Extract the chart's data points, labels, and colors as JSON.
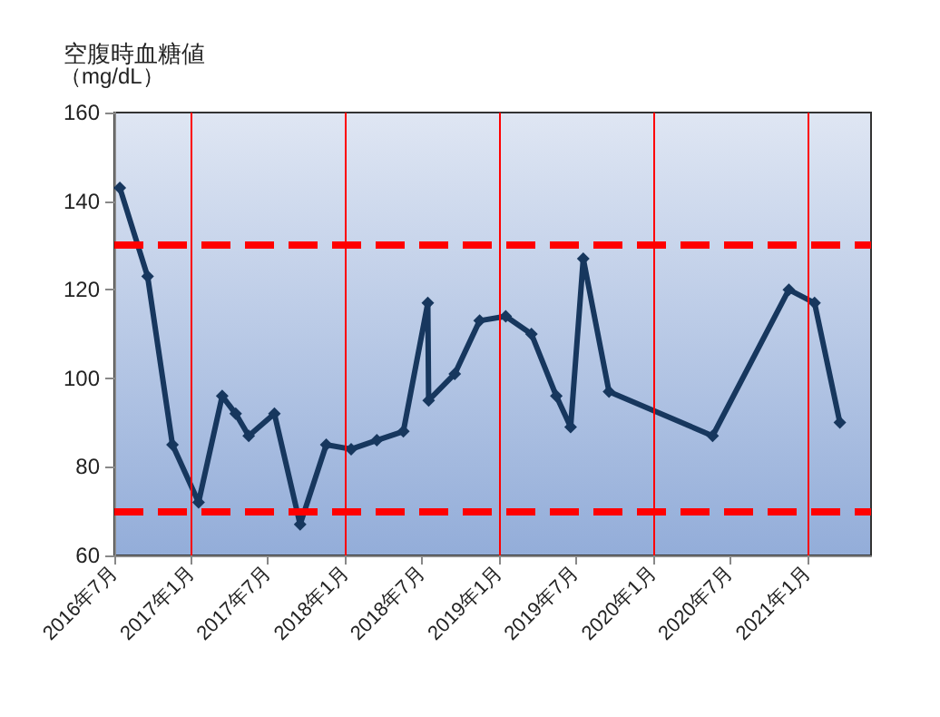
{
  "chart_data": {
    "type": "line",
    "title": "空腹時血糖値",
    "ylabel": "（mg/dL）",
    "x": [
      "2016-07-14",
      "2016-09-18",
      "2016-11-16",
      "2017-01-17",
      "2017-03-14",
      "2017-04-15",
      "2017-05-16",
      "2017-07-16",
      "2017-09-15",
      "2017-11-16",
      "2018-01-14",
      "2018-03-16",
      "2018-05-18",
      "2018-07-15",
      "2018-07-17",
      "2018-09-17",
      "2018-11-15",
      "2019-01-16",
      "2019-03-18",
      "2019-05-16",
      "2019-06-19",
      "2019-07-19",
      "2019-09-18",
      "2020-05-21",
      "2020-11-18",
      "2021-01-18",
      "2021-03-19"
    ],
    "series": [
      {
        "color": "#17375e",
        "values": [
          143,
          123,
          85,
          72,
          96,
          92,
          87,
          92,
          67,
          85,
          84,
          86,
          88,
          117,
          95,
          101,
          113,
          114,
          110,
          96,
          89,
          127,
          97,
          87,
          120,
          117,
          90
        ]
      }
    ],
    "xlim": [
      "2016-07-01",
      "2021-06-01"
    ],
    "xticks": [
      {
        "value": "2016-07",
        "label": "2016年7月"
      },
      {
        "value": "2017-01",
        "label": "2017年1月"
      },
      {
        "value": "2017-07",
        "label": "2017年7月"
      },
      {
        "value": "2018-01",
        "label": "2018年1月"
      },
      {
        "value": "2018-07",
        "label": "2018年7月"
      },
      {
        "value": "2019-01",
        "label": "2019年1月"
      },
      {
        "value": "2019-07",
        "label": "2019年7月"
      },
      {
        "value": "2020-01",
        "label": "2020年1月"
      },
      {
        "value": "2020-07",
        "label": "2020年7月"
      },
      {
        "value": "2021-01",
        "label": "2021年1月"
      }
    ],
    "ylim": [
      60,
      160
    ],
    "yticks": [
      60,
      80,
      100,
      120,
      140,
      160
    ],
    "ref_lines": [
      {
        "axis": "y",
        "value": 130,
        "color": "#ff0000",
        "line_style": "dashed"
      },
      {
        "axis": "y",
        "value": 70,
        "color": "#ff0000",
        "line_style": "dashed"
      },
      {
        "axis": "x",
        "value": "2017-01",
        "color": "#ff0000",
        "line_style": "solid"
      },
      {
        "axis": "x",
        "value": "2018-01",
        "color": "#ff0000",
        "line_style": "solid"
      },
      {
        "axis": "x",
        "value": "2019-01",
        "color": "#ff0000",
        "line_style": "solid"
      },
      {
        "axis": "x",
        "value": "2020-01",
        "color": "#ff0000",
        "line_style": "solid"
      },
      {
        "axis": "x",
        "value": "2021-01",
        "color": "#ff0000",
        "line_style": "solid"
      }
    ],
    "marker": "diamond",
    "line_style": "solid",
    "grid": false
  }
}
